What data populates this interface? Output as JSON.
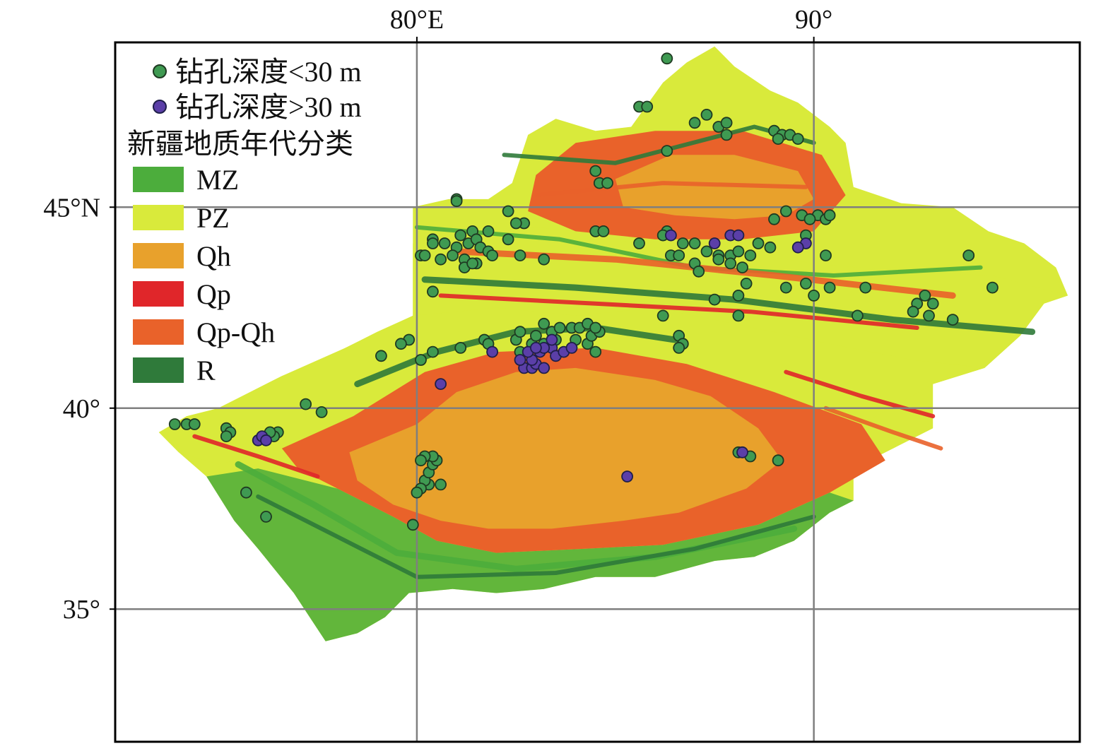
{
  "axes": {
    "lon_ticks": [
      {
        "value": 80,
        "label": "80°E"
      },
      {
        "value": 90,
        "label": "90°"
      }
    ],
    "lat_ticks": [
      {
        "value": 45,
        "label": "45°N"
      },
      {
        "value": 40,
        "label": "40°"
      },
      {
        "value": 35,
        "label": "35°"
      }
    ],
    "lon_range": [
      72.4,
      96.7
    ],
    "lat_range": [
      31.7,
      49.1
    ],
    "grid": true
  },
  "legend": {
    "placement": "top-left",
    "points": [
      {
        "label": "钻孔深度<30 m",
        "color": "#3f9a52"
      },
      {
        "label": "钻孔深度>30 m",
        "color": "#5b3fa8"
      }
    ],
    "title": "新疆地质年代分类",
    "classes": [
      {
        "label": "MZ",
        "color": "#4cad3c"
      },
      {
        "label": "PZ",
        "color": "#d9ea3b"
      },
      {
        "label": "Qh",
        "color": "#e8a12c"
      },
      {
        "label": "Qp",
        "color": "#e0262a"
      },
      {
        "label": "Qp-Qh",
        "color": "#e9622a"
      },
      {
        "label": "R",
        "color": "#2f7a3a"
      }
    ]
  },
  "region": {
    "outline": [
      [
        73.5,
        39.4
      ],
      [
        74.2,
        39.8
      ],
      [
        75.0,
        40.0
      ],
      [
        75.8,
        40.4
      ],
      [
        76.6,
        40.8
      ],
      [
        77.4,
        41.1
      ],
      [
        78.2,
        41.5
      ],
      [
        79.0,
        41.9
      ],
      [
        79.9,
        42.3
      ],
      [
        79.9,
        44.1
      ],
      [
        79.9,
        45.0
      ],
      [
        80.8,
        45.2
      ],
      [
        81.8,
        45.2
      ],
      [
        82.4,
        45.6
      ],
      [
        82.8,
        46.8
      ],
      [
        83.5,
        47.2
      ],
      [
        84.5,
        46.9
      ],
      [
        85.4,
        47.0
      ],
      [
        86.2,
        48.1
      ],
      [
        86.8,
        48.6
      ],
      [
        87.5,
        49.0
      ],
      [
        88.0,
        48.5
      ],
      [
        88.9,
        47.9
      ],
      [
        89.6,
        47.6
      ],
      [
        90.4,
        47.0
      ],
      [
        90.8,
        46.6
      ],
      [
        91.0,
        45.5
      ],
      [
        92.2,
        45.1
      ],
      [
        93.5,
        45.0
      ],
      [
        94.4,
        44.4
      ],
      [
        95.3,
        44.1
      ],
      [
        96.1,
        43.5
      ],
      [
        96.4,
        42.8
      ],
      [
        95.8,
        42.6
      ],
      [
        95.2,
        41.8
      ],
      [
        94.3,
        41.0
      ],
      [
        93.0,
        40.6
      ],
      [
        93.0,
        39.5
      ],
      [
        92.0,
        39.0
      ],
      [
        91.0,
        38.5
      ],
      [
        91.0,
        37.7
      ],
      [
        90.4,
        37.4
      ],
      [
        89.5,
        36.7
      ],
      [
        88.5,
        36.3
      ],
      [
        87.5,
        36.2
      ],
      [
        86.0,
        35.8
      ],
      [
        84.5,
        35.8
      ],
      [
        83.2,
        35.5
      ],
      [
        82.0,
        35.4
      ],
      [
        80.9,
        35.5
      ],
      [
        79.8,
        35.4
      ],
      [
        79.2,
        34.8
      ],
      [
        78.5,
        34.4
      ],
      [
        77.7,
        34.2
      ],
      [
        76.9,
        35.4
      ],
      [
        76.0,
        36.5
      ],
      [
        75.4,
        37.2
      ],
      [
        74.7,
        38.3
      ],
      [
        74.0,
        38.9
      ]
    ],
    "qh_core": [
      [
        78.3,
        38.9
      ],
      [
        80.0,
        39.6
      ],
      [
        81.0,
        40.4
      ],
      [
        82.5,
        40.9
      ],
      [
        84.0,
        41.0
      ],
      [
        86.0,
        40.7
      ],
      [
        87.4,
        40.3
      ],
      [
        88.6,
        39.5
      ],
      [
        89.2,
        38.7
      ],
      [
        88.3,
        38.0
      ],
      [
        86.6,
        37.4
      ],
      [
        85.2,
        37.2
      ],
      [
        83.4,
        37.0
      ],
      [
        81.8,
        37.0
      ],
      [
        80.6,
        37.2
      ],
      [
        79.4,
        37.6
      ],
      [
        78.5,
        38.2
      ]
    ],
    "qpqh_ring": [
      [
        76.6,
        39.0
      ],
      [
        78.4,
        39.8
      ],
      [
        80.2,
        40.9
      ],
      [
        82.0,
        41.4
      ],
      [
        84.5,
        41.5
      ],
      [
        86.8,
        41.1
      ],
      [
        89.0,
        40.4
      ],
      [
        91.2,
        39.6
      ],
      [
        91.8,
        38.7
      ],
      [
        90.4,
        37.9
      ],
      [
        88.6,
        37.1
      ],
      [
        86.2,
        36.6
      ],
      [
        84.2,
        36.5
      ],
      [
        82.0,
        36.4
      ],
      [
        80.5,
        36.7
      ],
      [
        79.4,
        37.3
      ],
      [
        78.0,
        38.0
      ],
      [
        77.0,
        38.5
      ]
    ],
    "tarim_belt": [
      [
        73.5,
        39.4
      ],
      [
        75.0,
        40.0
      ],
      [
        76.6,
        40.8
      ],
      [
        78.2,
        41.5
      ],
      [
        79.9,
        42.3
      ],
      [
        82.0,
        42.5
      ],
      [
        84.0,
        42.3
      ],
      [
        86.0,
        42.5
      ],
      [
        88.5,
        42.0
      ],
      [
        90.4,
        41.6
      ],
      [
        92.5,
        41.2
      ],
      [
        94.3,
        41.0
      ],
      [
        93.0,
        40.6
      ],
      [
        91.2,
        39.6
      ],
      [
        89.0,
        40.4
      ],
      [
        86.8,
        41.1
      ],
      [
        84.5,
        41.5
      ],
      [
        82.0,
        41.4
      ],
      [
        80.2,
        40.9
      ],
      [
        78.4,
        39.8
      ],
      [
        76.6,
        39.0
      ],
      [
        75.0,
        38.6
      ],
      [
        74.0,
        38.9
      ]
    ],
    "tianshan_belt": [
      [
        79.9,
        42.3
      ],
      [
        79.9,
        44.1
      ],
      [
        82.0,
        44.6
      ],
      [
        84.0,
        44.4
      ],
      [
        86.0,
        44.0
      ],
      [
        88.0,
        43.9
      ],
      [
        90.0,
        43.6
      ],
      [
        92.2,
        43.4
      ],
      [
        94.5,
        43.3
      ],
      [
        96.4,
        42.8
      ],
      [
        95.8,
        42.6
      ],
      [
        95.2,
        41.8
      ],
      [
        94.3,
        41.0
      ],
      [
        92.5,
        41.2
      ],
      [
        90.4,
        41.6
      ],
      [
        88.5,
        42.0
      ],
      [
        86.0,
        42.5
      ],
      [
        84.0,
        42.3
      ],
      [
        82.0,
        42.5
      ]
    ],
    "junggar_qh": [
      [
        85.0,
        45.7
      ],
      [
        86.4,
        46.3
      ],
      [
        88.0,
        46.3
      ],
      [
        89.6,
        45.9
      ],
      [
        90.0,
        45.2
      ],
      [
        89.3,
        44.8
      ],
      [
        88.0,
        44.7
      ],
      [
        86.5,
        44.8
      ],
      [
        85.2,
        45.0
      ]
    ],
    "junggar_ring": [
      [
        83.0,
        45.8
      ],
      [
        84.0,
        46.6
      ],
      [
        86.0,
        46.9
      ],
      [
        88.2,
        46.9
      ],
      [
        90.2,
        46.3
      ],
      [
        90.8,
        45.3
      ],
      [
        90.0,
        44.4
      ],
      [
        88.2,
        44.2
      ],
      [
        86.0,
        44.2
      ],
      [
        84.0,
        44.4
      ],
      [
        82.8,
        44.9
      ]
    ],
    "kunlun_belt": [
      [
        74.7,
        38.3
      ],
      [
        76.0,
        38.5
      ],
      [
        78.0,
        38.0
      ],
      [
        79.4,
        37.3
      ],
      [
        80.5,
        36.7
      ],
      [
        82.0,
        36.4
      ],
      [
        84.2,
        36.5
      ],
      [
        86.2,
        36.6
      ],
      [
        88.6,
        37.1
      ],
      [
        90.4,
        37.9
      ],
      [
        91.0,
        37.7
      ],
      [
        90.4,
        37.4
      ],
      [
        89.5,
        36.7
      ],
      [
        88.5,
        36.3
      ],
      [
        87.5,
        36.2
      ],
      [
        86.0,
        35.8
      ],
      [
        84.5,
        35.8
      ],
      [
        83.2,
        35.5
      ],
      [
        82.0,
        35.4
      ],
      [
        80.9,
        35.5
      ],
      [
        79.8,
        35.4
      ],
      [
        79.2,
        34.8
      ],
      [
        78.5,
        34.4
      ],
      [
        77.7,
        34.2
      ],
      [
        76.9,
        35.4
      ],
      [
        76.0,
        36.5
      ],
      [
        75.4,
        37.2
      ]
    ]
  },
  "points": {
    "shallow": [
      [
        86.3,
        48.7
      ],
      [
        85.6,
        47.5
      ],
      [
        85.8,
        47.5
      ],
      [
        87.3,
        47.3
      ],
      [
        87.0,
        47.1
      ],
      [
        87.6,
        47.0
      ],
      [
        87.8,
        47.1
      ],
      [
        89.0,
        46.9
      ],
      [
        89.2,
        46.8
      ],
      [
        89.4,
        46.8
      ],
      [
        89.1,
        46.7
      ],
      [
        89.6,
        46.7
      ],
      [
        86.3,
        46.4
      ],
      [
        87.8,
        46.8
      ],
      [
        84.5,
        45.9
      ],
      [
        84.6,
        45.6
      ],
      [
        84.8,
        45.6
      ],
      [
        81.0,
        45.2
      ],
      [
        81.0,
        45.15
      ],
      [
        82.3,
        44.9
      ],
      [
        82.7,
        44.6
      ],
      [
        82.5,
        44.6
      ],
      [
        81.8,
        44.4
      ],
      [
        81.4,
        44.4
      ],
      [
        81.1,
        44.3
      ],
      [
        80.4,
        44.2
      ],
      [
        80.7,
        44.1
      ],
      [
        81.0,
        44.0
      ],
      [
        81.3,
        44.1
      ],
      [
        81.5,
        44.2
      ],
      [
        81.6,
        44.0
      ],
      [
        81.8,
        43.9
      ],
      [
        81.9,
        43.8
      ],
      [
        81.5,
        43.6
      ],
      [
        81.2,
        43.7
      ],
      [
        80.9,
        43.8
      ],
      [
        80.6,
        43.7
      ],
      [
        80.4,
        44.1
      ],
      [
        80.1,
        43.8
      ],
      [
        80.2,
        43.8
      ],
      [
        82.3,
        44.2
      ],
      [
        82.6,
        43.8
      ],
      [
        83.2,
        43.7
      ],
      [
        81.2,
        43.5
      ],
      [
        81.4,
        43.6
      ],
      [
        84.5,
        44.4
      ],
      [
        84.7,
        44.4
      ],
      [
        85.6,
        44.1
      ],
      [
        86.3,
        44.4
      ],
      [
        86.2,
        44.3
      ],
      [
        86.7,
        44.1
      ],
      [
        86.4,
        43.8
      ],
      [
        86.6,
        43.8
      ],
      [
        87.0,
        44.1
      ],
      [
        87.3,
        43.9
      ],
      [
        87.6,
        43.8
      ],
      [
        87.6,
        43.7
      ],
      [
        87.9,
        43.8
      ],
      [
        88.1,
        43.9
      ],
      [
        88.6,
        44.1
      ],
      [
        88.9,
        44.0
      ],
      [
        88.4,
        43.8
      ],
      [
        87.9,
        43.6
      ],
      [
        88.2,
        43.5
      ],
      [
        87.0,
        43.6
      ],
      [
        87.1,
        43.4
      ],
      [
        88.3,
        43.1
      ],
      [
        88.1,
        42.8
      ],
      [
        87.5,
        42.7
      ],
      [
        88.1,
        42.3
      ],
      [
        86.2,
        42.3
      ],
      [
        86.6,
        41.8
      ],
      [
        86.7,
        41.6
      ],
      [
        86.6,
        41.5
      ],
      [
        89.0,
        44.7
      ],
      [
        89.3,
        44.9
      ],
      [
        89.7,
        44.8
      ],
      [
        90.1,
        44.8
      ],
      [
        90.3,
        44.7
      ],
      [
        90.4,
        44.8
      ],
      [
        89.9,
        44.7
      ],
      [
        89.8,
        44.3
      ],
      [
        90.3,
        43.8
      ],
      [
        89.8,
        43.1
      ],
      [
        90.4,
        43.0
      ],
      [
        89.3,
        43.0
      ],
      [
        90.0,
        42.8
      ],
      [
        91.3,
        43.0
      ],
      [
        92.6,
        42.6
      ],
      [
        92.8,
        42.8
      ],
      [
        93.0,
        42.6
      ],
      [
        92.5,
        42.4
      ],
      [
        92.9,
        42.3
      ],
      [
        93.5,
        42.2
      ],
      [
        93.9,
        43.8
      ],
      [
        94.5,
        43.0
      ],
      [
        91.1,
        42.3
      ],
      [
        80.4,
        42.9
      ],
      [
        79.8,
        41.7
      ],
      [
        79.6,
        41.6
      ],
      [
        79.1,
        41.3
      ],
      [
        80.1,
        41.2
      ],
      [
        80.4,
        41.4
      ],
      [
        81.1,
        41.5
      ],
      [
        81.7,
        41.7
      ],
      [
        81.8,
        41.6
      ],
      [
        82.5,
        41.7
      ],
      [
        82.6,
        41.4
      ],
      [
        82.9,
        41.6
      ],
      [
        83.2,
        41.6
      ],
      [
        83.5,
        41.7
      ],
      [
        83.4,
        41.9
      ],
      [
        83.6,
        42.0
      ],
      [
        83.9,
        42.0
      ],
      [
        84.1,
        42.0
      ],
      [
        84.3,
        42.1
      ],
      [
        84.0,
        41.7
      ],
      [
        84.3,
        41.6
      ],
      [
        84.5,
        41.4
      ],
      [
        84.4,
        41.8
      ],
      [
        84.6,
        41.9
      ],
      [
        84.5,
        42.0
      ],
      [
        83.0,
        41.8
      ],
      [
        83.2,
        42.1
      ],
      [
        82.6,
        41.9
      ],
      [
        77.2,
        40.1
      ],
      [
        77.6,
        39.9
      ],
      [
        73.9,
        39.6
      ],
      [
        74.2,
        39.6
      ],
      [
        74.4,
        39.6
      ],
      [
        75.2,
        39.5
      ],
      [
        75.3,
        39.4
      ],
      [
        75.2,
        39.3
      ],
      [
        76.5,
        39.4
      ],
      [
        76.4,
        39.3
      ],
      [
        76.3,
        39.4
      ],
      [
        75.7,
        37.9
      ],
      [
        76.2,
        37.3
      ],
      [
        79.9,
        37.1
      ],
      [
        80.3,
        38.1
      ],
      [
        80.2,
        38.2
      ],
      [
        80.1,
        38.0
      ],
      [
        80.0,
        37.9
      ],
      [
        80.3,
        38.4
      ],
      [
        80.4,
        38.6
      ],
      [
        80.5,
        38.7
      ],
      [
        80.4,
        38.8
      ],
      [
        80.2,
        38.8
      ],
      [
        80.1,
        38.7
      ],
      [
        80.6,
        38.1
      ],
      [
        88.4,
        38.8
      ],
      [
        88.1,
        38.9
      ],
      [
        89.1,
        38.7
      ]
    ],
    "deep": [
      [
        86.4,
        44.3
      ],
      [
        87.5,
        44.1
      ],
      [
        87.9,
        44.3
      ],
      [
        88.1,
        44.3
      ],
      [
        89.8,
        44.1
      ],
      [
        89.6,
        44.0
      ],
      [
        80.6,
        40.6
      ],
      [
        81.9,
        41.4
      ],
      [
        82.7,
        41.0
      ],
      [
        82.9,
        41.0
      ],
      [
        83.0,
        41.1
      ],
      [
        83.2,
        41.0
      ],
      [
        82.9,
        41.2
      ],
      [
        82.8,
        41.4
      ],
      [
        83.1,
        41.4
      ],
      [
        83.4,
        41.5
      ],
      [
        83.5,
        41.3
      ],
      [
        83.7,
        41.4
      ],
      [
        83.9,
        41.5
      ],
      [
        83.4,
        41.7
      ],
      [
        83.2,
        41.5
      ],
      [
        83.0,
        41.5
      ],
      [
        82.6,
        41.2
      ],
      [
        76.0,
        39.2
      ],
      [
        76.1,
        39.3
      ],
      [
        76.2,
        39.2
      ],
      [
        88.2,
        38.9
      ],
      [
        85.3,
        38.3
      ]
    ]
  }
}
